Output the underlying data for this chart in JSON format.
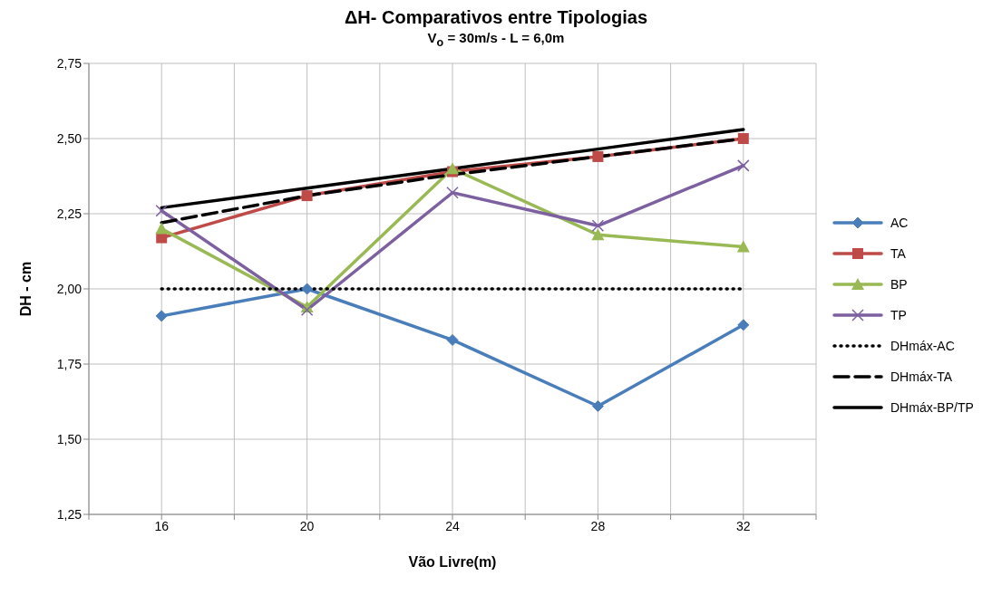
{
  "chart_data": {
    "type": "line",
    "title": "ΔH- Comparativos entre Tipologias",
    "subtitle": "V$_{o}$ = 30m/s  -  L = 6,0m",
    "xlabel": "Vão Livre(m)",
    "ylabel": "DH - cm",
    "x": [
      16,
      20,
      24,
      28,
      32
    ],
    "xlim": [
      14,
      34
    ],
    "xticks": [
      {
        "value": 14,
        "label": null
      },
      16,
      {
        "value": 18,
        "label": null
      },
      20,
      {
        "value": 22,
        "label": null
      },
      24,
      {
        "value": 26,
        "label": null
      },
      28,
      {
        "value": 30,
        "label": null
      },
      32,
      {
        "value": 34,
        "label": null
      }
    ],
    "ylim": [
      1.25,
      2.75
    ],
    "yticks": [
      {
        "value": 1.25,
        "label": "1,25"
      },
      {
        "value": 1.5,
        "label": "1,50"
      },
      {
        "value": 1.75,
        "label": "1,75"
      },
      {
        "value": 2,
        "label": "2,00"
      },
      {
        "value": 2.25,
        "label": "2,25"
      },
      {
        "value": 2.5,
        "label": "2,50"
      },
      {
        "value": 2.75,
        "label": "2,75"
      }
    ],
    "grid": true,
    "legend": "right",
    "series": [
      {
        "name": "AC",
        "color": "#4a7ebb",
        "marker": "diamond",
        "line_style": "solid",
        "values": [
          1.91,
          2.0,
          1.83,
          1.61,
          1.88
        ]
      },
      {
        "name": "TA",
        "color": "#be4b48",
        "marker": "square",
        "line_style": "solid",
        "values": [
          2.17,
          2.31,
          2.39,
          2.44,
          2.5
        ]
      },
      {
        "name": "BP",
        "color": "#98b954",
        "marker": "triangle",
        "line_style": "solid",
        "values": [
          2.2,
          1.94,
          2.4,
          2.18,
          2.14
        ]
      },
      {
        "name": "TP",
        "color": "#7d60a0",
        "marker": "cross",
        "line_style": "solid",
        "values": [
          2.26,
          1.93,
          2.32,
          2.21,
          2.41
        ]
      },
      {
        "name": "DHmáx-AC",
        "color": "#000000",
        "marker": "none",
        "line_style": "dotted",
        "values": [
          2.0,
          2.0,
          2.0,
          2.0,
          2.0
        ]
      },
      {
        "name": "DHmáx-TA",
        "color": "#000000",
        "marker": "none",
        "line_style": "dashed",
        "values": [
          2.22,
          2.31,
          2.38,
          2.44,
          2.5
        ]
      },
      {
        "name": "DHmáx-BP/TP",
        "color": "#000000",
        "marker": "none",
        "line_style": "solid",
        "values": [
          2.27,
          2.335,
          2.4,
          2.465,
          2.53
        ]
      }
    ]
  }
}
